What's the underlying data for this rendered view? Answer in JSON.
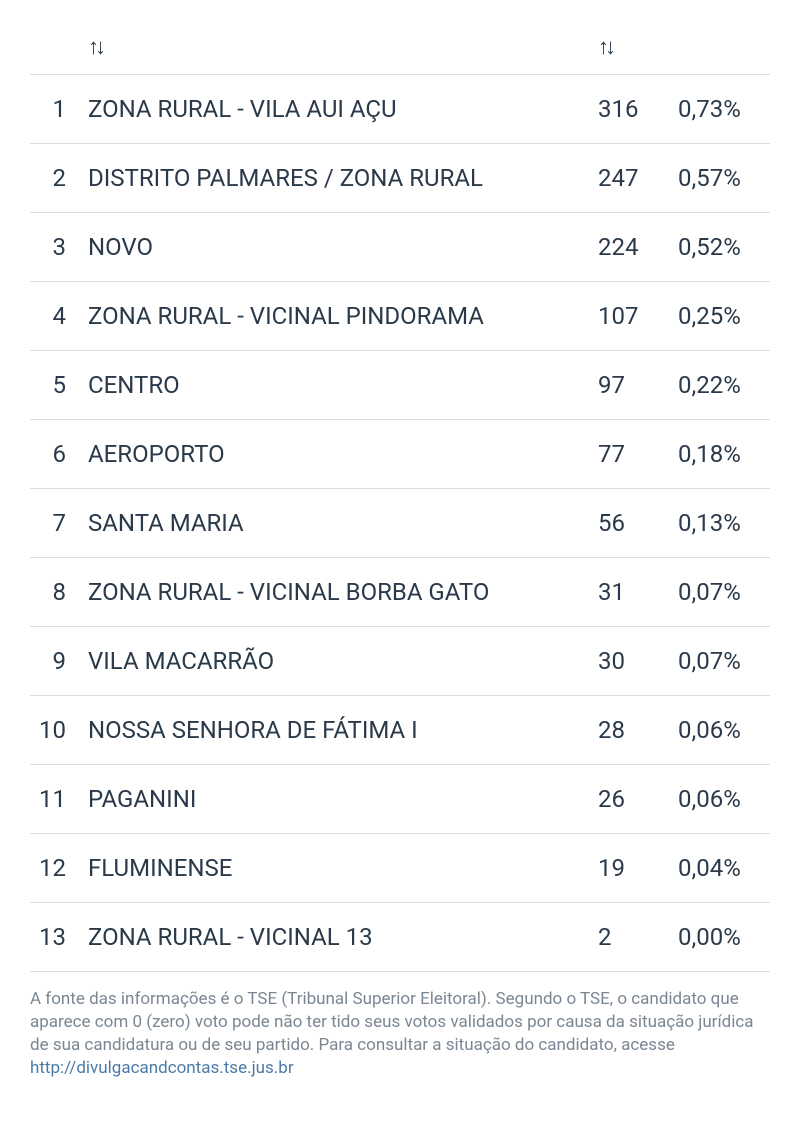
{
  "table": {
    "sort_icon": "↑↓",
    "columns": {
      "rank": "",
      "name": "",
      "votes": "",
      "pct": ""
    },
    "rows": [
      {
        "rank": "1",
        "name": "ZONA RURAL - VILA AUI AÇU",
        "votes": "316",
        "pct": "0,73%"
      },
      {
        "rank": "2",
        "name": "DISTRITO PALMARES / ZONA RURAL",
        "votes": "247",
        "pct": "0,57%"
      },
      {
        "rank": "3",
        "name": "NOVO",
        "votes": "224",
        "pct": "0,52%"
      },
      {
        "rank": "4",
        "name": "ZONA RURAL - VICINAL PINDORAMA",
        "votes": "107",
        "pct": "0,25%"
      },
      {
        "rank": "5",
        "name": "CENTRO",
        "votes": "97",
        "pct": "0,22%"
      },
      {
        "rank": "6",
        "name": "AEROPORTO",
        "votes": "77",
        "pct": "0,18%"
      },
      {
        "rank": "7",
        "name": "SANTA MARIA",
        "votes": "56",
        "pct": "0,13%"
      },
      {
        "rank": "8",
        "name": "ZONA RURAL - VICINAL BORBA GATO",
        "votes": "31",
        "pct": "0,07%"
      },
      {
        "rank": "9",
        "name": "VILA MACARRÃO",
        "votes": "30",
        "pct": "0,07%"
      },
      {
        "rank": "10",
        "name": "NOSSA SENHORA DE FÁTIMA I",
        "votes": "28",
        "pct": "0,06%"
      },
      {
        "rank": "11",
        "name": "PAGANINI",
        "votes": "26",
        "pct": "0,06%"
      },
      {
        "rank": "12",
        "name": "FLUMINENSE",
        "votes": "19",
        "pct": "0,04%"
      },
      {
        "rank": "13",
        "name": "ZONA RURAL - VICINAL 13",
        "votes": "2",
        "pct": "0,00%"
      }
    ]
  },
  "footer": {
    "text": "A fonte das informações é o TSE (Tribunal Superior Eleitoral). Segundo o TSE, o candidato que aparece com 0 (zero) voto pode não ter tido seus votos validados por causa da situação jurídica de sua candidatura ou de seu partido. Para consultar a situação do candidato, acesse ",
    "link_text": "http://divulgacandcontas.tse.jus.br",
    "link_href": "http://divulgacandcontas.tse.jus.br"
  },
  "styling": {
    "text_color": "#2b3a4a",
    "border_color": "#d8dde3",
    "footer_text_color": "#7a8693",
    "link_color": "#4a7ba6",
    "background_color": "#ffffff",
    "body_font_size": 24,
    "footer_font_size": 17
  }
}
